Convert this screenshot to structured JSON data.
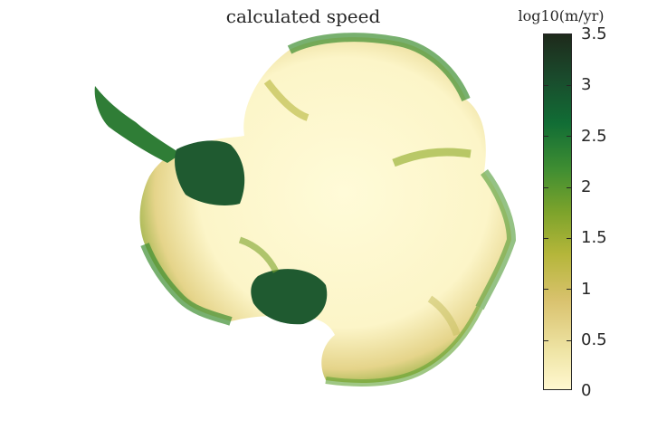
{
  "title": "calculated speed",
  "colorbar": {
    "label": "log10(m/yr)",
    "ticks": [
      "3.5",
      "3",
      "2.5",
      "2",
      "1.5",
      "1",
      "0.5",
      "0"
    ],
    "range": [
      0,
      3.5
    ],
    "colors": [
      "#fff7cf",
      "#d9c26e",
      "#7ca32b",
      "#116d35",
      "#1e2a1b"
    ]
  }
}
